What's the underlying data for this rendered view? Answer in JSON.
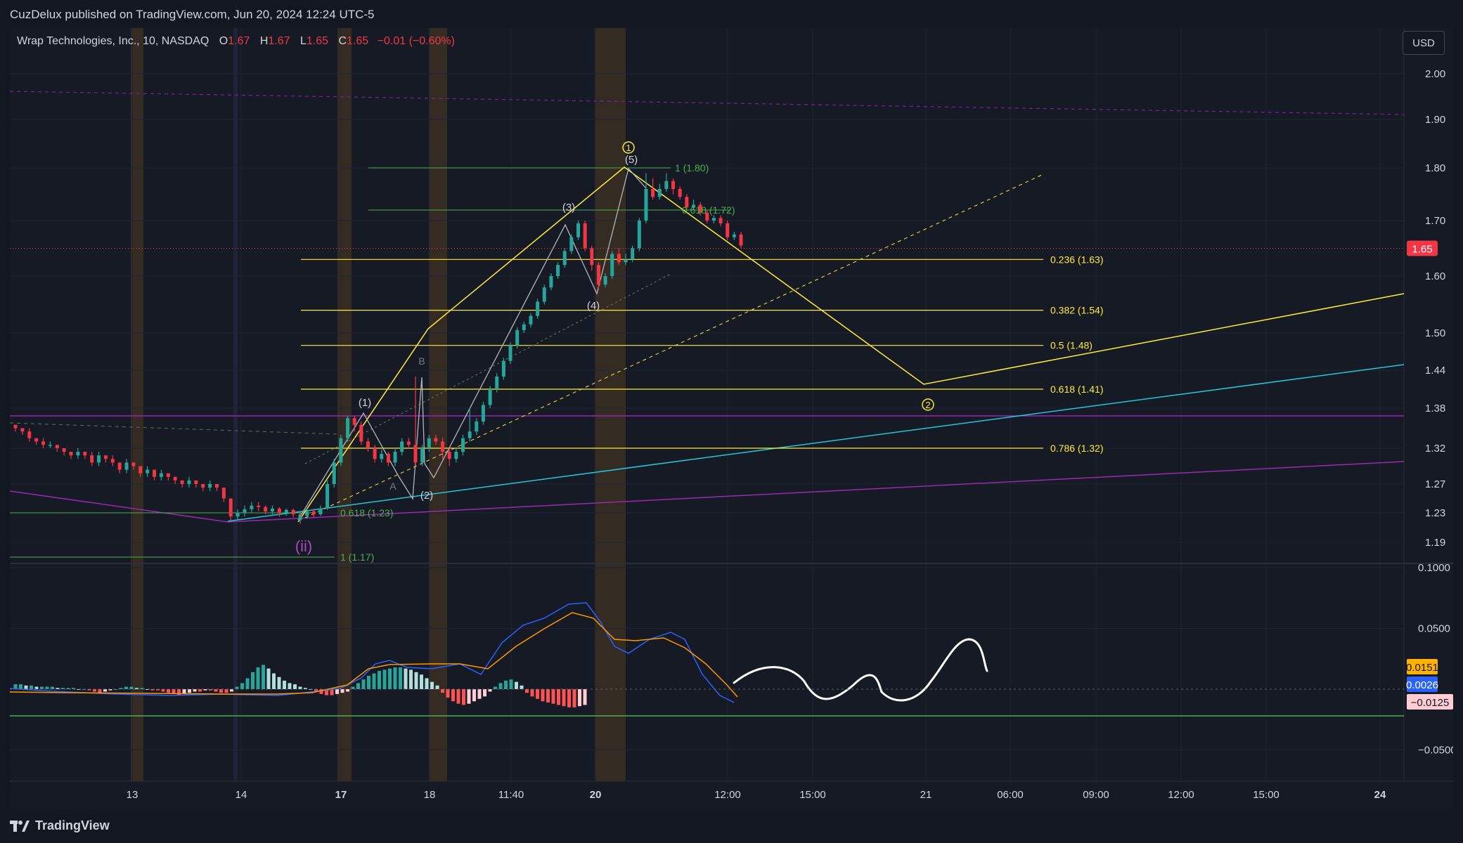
{
  "publish_line": "CuzDelux published on TradingView.com, Jun 20, 2024 12:24 UTC-5",
  "legend": {
    "symbol": "Wrap Technologies, Inc., 10, NASDAQ",
    "open_label": "O",
    "open": "1.67",
    "high_label": "H",
    "high": "1.67",
    "low_label": "L",
    "low": "1.65",
    "close_label": "C",
    "close": "1.65",
    "change": "−0.01 (−0.60%)"
  },
  "currency_button": "USD",
  "footer_brand": "TradingView",
  "colors": {
    "up": "#26a69a",
    "down": "#f23645",
    "fib": "#ffeb3b",
    "fib_green": "#4caf50",
    "purple": "#9c27b0",
    "cyan": "#26c6da",
    "session": "#3a2f22",
    "macd": "#2962ff",
    "signal": "#ff9800"
  },
  "chart_data": [
    {
      "type": "candlestick",
      "title": "Wrap Technologies, Inc., 10, NASDAQ",
      "y_axis_labels": [
        "2.00",
        "1.90",
        "1.80",
        "1.70",
        "1.60",
        "1.50",
        "1.44",
        "1.38",
        "1.32",
        "1.27",
        "1.23",
        "1.19"
      ],
      "y_axis_values": [
        2.0,
        1.9,
        1.8,
        1.7,
        1.6,
        1.5,
        1.44,
        1.38,
        1.32,
        1.27,
        1.23,
        1.19
      ],
      "x_axis_labels": [
        {
          "label": "13",
          "px": 188
        },
        {
          "label": "14",
          "px": 343
        },
        {
          "label": "17",
          "px": 485,
          "bold": true
        },
        {
          "label": "18",
          "px": 611
        },
        {
          "label": "11:40",
          "px": 727
        },
        {
          "label": "20",
          "px": 847,
          "bold": true
        },
        {
          "label": "12:00",
          "px": 1035
        },
        {
          "label": "15:00",
          "px": 1156
        },
        {
          "label": "21",
          "px": 1317
        },
        {
          "label": "06:00",
          "px": 1437
        },
        {
          "label": "09:00",
          "px": 1559
        },
        {
          "label": "12:00",
          "px": 1680
        },
        {
          "label": "15:00",
          "px": 1801
        },
        {
          "label": "24",
          "px": 1963,
          "bold": true
        }
      ],
      "last_price": {
        "value": 1.65,
        "label": "1.65"
      },
      "candles": [
        [
          1.355,
          1.35,
          1.345,
          1.355
        ],
        [
          1.35,
          1.345,
          1.34,
          1.35
        ],
        [
          1.345,
          1.335,
          1.33,
          1.35
        ],
        [
          1.335,
          1.33,
          1.325,
          1.335
        ],
        [
          1.33,
          1.325,
          1.32,
          1.335
        ],
        [
          1.325,
          1.325,
          1.32,
          1.33
        ],
        [
          1.325,
          1.32,
          1.315,
          1.325
        ],
        [
          1.32,
          1.315,
          1.31,
          1.32
        ],
        [
          1.315,
          1.31,
          1.305,
          1.315
        ],
        [
          1.31,
          1.315,
          1.305,
          1.32
        ],
        [
          1.315,
          1.31,
          1.305,
          1.315
        ],
        [
          1.31,
          1.3,
          1.295,
          1.315
        ],
        [
          1.3,
          1.31,
          1.295,
          1.315
        ],
        [
          1.31,
          1.305,
          1.3,
          1.31
        ],
        [
          1.305,
          1.3,
          1.295,
          1.31
        ],
        [
          1.3,
          1.29,
          1.285,
          1.3
        ],
        [
          1.29,
          1.3,
          1.285,
          1.305
        ],
        [
          1.3,
          1.295,
          1.29,
          1.3
        ],
        [
          1.295,
          1.285,
          1.28,
          1.295
        ],
        [
          1.285,
          1.29,
          1.28,
          1.295
        ],
        [
          1.29,
          1.28,
          1.275,
          1.29
        ],
        [
          1.28,
          1.285,
          1.275,
          1.29
        ],
        [
          1.285,
          1.28,
          1.275,
          1.285
        ],
        [
          1.28,
          1.275,
          1.27,
          1.28
        ],
        [
          1.275,
          1.27,
          1.265,
          1.275
        ],
        [
          1.27,
          1.275,
          1.265,
          1.28
        ],
        [
          1.275,
          1.27,
          1.265,
          1.275
        ],
        [
          1.27,
          1.265,
          1.26,
          1.27
        ],
        [
          1.265,
          1.27,
          1.26,
          1.275
        ],
        [
          1.27,
          1.265,
          1.26,
          1.27
        ],
        [
          1.265,
          1.25,
          1.245,
          1.265
        ],
        [
          1.25,
          1.225,
          1.22,
          1.25
        ],
        [
          1.225,
          1.23,
          1.22,
          1.235
        ],
        [
          1.23,
          1.235,
          1.225,
          1.24
        ],
        [
          1.235,
          1.24,
          1.23,
          1.245
        ],
        [
          1.24,
          1.238,
          1.232,
          1.245
        ],
        [
          1.238,
          1.232,
          1.228,
          1.24
        ],
        [
          1.232,
          1.236,
          1.228,
          1.24
        ],
        [
          1.236,
          1.23,
          1.225,
          1.238
        ],
        [
          1.23,
          1.234,
          1.226,
          1.236
        ],
        [
          1.234,
          1.228,
          1.224,
          1.236
        ],
        [
          1.228,
          1.22,
          1.215,
          1.23
        ],
        [
          1.22,
          1.226,
          1.218,
          1.232
        ],
        [
          1.226,
          1.232,
          1.222,
          1.236
        ],
        [
          1.232,
          1.228,
          1.224,
          1.236
        ],
        [
          1.228,
          1.236,
          1.226,
          1.24
        ],
        [
          1.236,
          1.27,
          1.234,
          1.275
        ],
        [
          1.27,
          1.3,
          1.265,
          1.305
        ],
        [
          1.3,
          1.335,
          1.295,
          1.34
        ],
        [
          1.335,
          1.365,
          1.33,
          1.368
        ],
        [
          1.365,
          1.355,
          1.345,
          1.368
        ],
        [
          1.355,
          1.33,
          1.325,
          1.36
        ],
        [
          1.33,
          1.32,
          1.315,
          1.335
        ],
        [
          1.32,
          1.305,
          1.3,
          1.325
        ],
        [
          1.305,
          1.312,
          1.3,
          1.318
        ],
        [
          1.312,
          1.3,
          1.295,
          1.315
        ],
        [
          1.3,
          1.315,
          1.295,
          1.32
        ],
        [
          1.315,
          1.33,
          1.31,
          1.335
        ],
        [
          1.33,
          1.325,
          1.32,
          1.335
        ],
        [
          1.325,
          1.3,
          1.295,
          1.43
        ],
        [
          1.3,
          1.32,
          1.295,
          1.325
        ],
        [
          1.32,
          1.335,
          1.315,
          1.34
        ],
        [
          1.335,
          1.33,
          1.325,
          1.34
        ],
        [
          1.33,
          1.315,
          1.305,
          1.335
        ],
        [
          1.315,
          1.305,
          1.295,
          1.32
        ],
        [
          1.305,
          1.315,
          1.3,
          1.32
        ],
        [
          1.315,
          1.335,
          1.31,
          1.34
        ],
        [
          1.335,
          1.345,
          1.33,
          1.38
        ],
        [
          1.345,
          1.36,
          1.34,
          1.365
        ],
        [
          1.36,
          1.385,
          1.355,
          1.39
        ],
        [
          1.385,
          1.41,
          1.38,
          1.415
        ],
        [
          1.41,
          1.43,
          1.405,
          1.435
        ],
        [
          1.43,
          1.455,
          1.425,
          1.46
        ],
        [
          1.455,
          1.48,
          1.45,
          1.485
        ],
        [
          1.48,
          1.505,
          1.475,
          1.51
        ],
        [
          1.505,
          1.515,
          1.5,
          1.52
        ],
        [
          1.515,
          1.53,
          1.51,
          1.535
        ],
        [
          1.53,
          1.555,
          1.525,
          1.56
        ],
        [
          1.555,
          1.58,
          1.55,
          1.585
        ],
        [
          1.58,
          1.6,
          1.575,
          1.605
        ],
        [
          1.6,
          1.62,
          1.595,
          1.625
        ],
        [
          1.62,
          1.645,
          1.615,
          1.65
        ],
        [
          1.645,
          1.67,
          1.64,
          1.675
        ],
        [
          1.67,
          1.695,
          1.665,
          1.7
        ],
        [
          1.695,
          1.65,
          1.645,
          1.7
        ],
        [
          1.65,
          1.62,
          1.61,
          1.655
        ],
        [
          1.62,
          1.585,
          1.575,
          1.625
        ],
        [
          1.585,
          1.6,
          1.58,
          1.605
        ],
        [
          1.6,
          1.64,
          1.595,
          1.645
        ],
        [
          1.64,
          1.625,
          1.62,
          1.65
        ],
        [
          1.625,
          1.63,
          1.62,
          1.64
        ],
        [
          1.63,
          1.65,
          1.625,
          1.655
        ],
        [
          1.65,
          1.7,
          1.645,
          1.705
        ],
        [
          1.7,
          1.76,
          1.695,
          1.79
        ],
        [
          1.76,
          1.745,
          1.74,
          1.78
        ],
        [
          1.745,
          1.76,
          1.74,
          1.77
        ],
        [
          1.76,
          1.775,
          1.755,
          1.79
        ],
        [
          1.775,
          1.76,
          1.75,
          1.78
        ],
        [
          1.76,
          1.745,
          1.74,
          1.765
        ],
        [
          1.745,
          1.725,
          1.72,
          1.75
        ],
        [
          1.725,
          1.73,
          1.72,
          1.74
        ],
        [
          1.73,
          1.715,
          1.71,
          1.735
        ],
        [
          1.715,
          1.7,
          1.695,
          1.72
        ],
        [
          1.7,
          1.705,
          1.695,
          1.71
        ],
        [
          1.705,
          1.695,
          1.69,
          1.71
        ],
        [
          1.695,
          1.67,
          1.665,
          1.7
        ],
        [
          1.67,
          1.675,
          1.665,
          1.68
        ],
        [
          1.675,
          1.655,
          1.65,
          1.68
        ]
      ],
      "fib_levels": [
        {
          "ratio": "0.236",
          "price": 1.63,
          "label": "0.236 (1.63)"
        },
        {
          "ratio": "0.382",
          "price": 1.54,
          "label": "0.382 (1.54)"
        },
        {
          "ratio": "0.5",
          "price": 1.48,
          "label": "0.5 (1.48)"
        },
        {
          "ratio": "0.618",
          "price": 1.41,
          "label": "0.618 (1.41)"
        },
        {
          "ratio": "0.786",
          "price": 1.32,
          "label": "0.786 (1.32)"
        }
      ],
      "fib_ext_levels": [
        {
          "price": 1.8,
          "label": "1 (1.80)"
        },
        {
          "price": 1.72,
          "label": "0.618 (1.72)"
        },
        {
          "price": 1.23,
          "label": "0.618 (1.23)"
        },
        {
          "price": 1.17,
          "label": "1 (1.17)"
        }
      ],
      "wave_labels": [
        "(1)",
        "(2)",
        "(3)",
        "(4)",
        "(5)",
        "A",
        "B",
        "(ii)",
        "1",
        "2"
      ],
      "projection": {
        "target_label": "2",
        "target_price": 1.41
      }
    },
    {
      "type": "bar",
      "title": "MACD",
      "y_axis_labels": [
        "0.1000",
        "0.0500",
        "−0.0500"
      ],
      "y_axis_values": [
        0.1,
        0.05,
        -0.05
      ],
      "current_values": [
        {
          "label": "0.0151",
          "color": "#ffb300",
          "text_color": "#131722"
        },
        {
          "label": "0.0026",
          "color": "#2962ff",
          "text_color": "#ffffff"
        },
        {
          "label": "−0.0125",
          "color": "#ffcdd2",
          "text_color": "#131722"
        }
      ],
      "histogram": [
        0.004,
        0.004,
        0.003,
        0.003,
        0.002,
        0.002,
        0.002,
        0.002,
        0.001,
        0.001,
        0.001,
        0.001,
        0.0,
        0.0,
        -0.001,
        -0.002,
        -0.003,
        -0.002,
        -0.001,
        0.0,
        0.001,
        0.002,
        0.002,
        0.001,
        0.001,
        0.0,
        -0.001,
        -0.001,
        -0.002,
        -0.003,
        -0.004,
        -0.005,
        -0.004,
        -0.003,
        -0.002,
        -0.002,
        -0.001,
        -0.001,
        -0.002,
        -0.003,
        -0.003,
        -0.002,
        0.002,
        0.005,
        0.009,
        0.014,
        0.018,
        0.02,
        0.017,
        0.013,
        0.01,
        0.007,
        0.005,
        0.004,
        0.002,
        0.001,
        0.0,
        -0.002,
        -0.004,
        -0.005,
        -0.005,
        -0.004,
        -0.003,
        -0.002,
        0.002,
        0.005,
        0.008,
        0.011,
        0.013,
        0.015,
        0.016,
        0.017,
        0.018,
        0.018,
        0.017,
        0.016,
        0.014,
        0.012,
        0.009,
        0.006,
        0.003,
        -0.003,
        -0.007,
        -0.01,
        -0.012,
        -0.013,
        -0.012,
        -0.01,
        -0.008,
        -0.006,
        -0.002,
        0.002,
        0.005,
        0.007,
        0.008,
        0.006,
        0.003,
        -0.003,
        -0.006,
        -0.008,
        -0.01,
        -0.011,
        -0.012,
        -0.013,
        -0.014,
        -0.015,
        -0.015,
        -0.014,
        -0.013
      ]
    }
  ]
}
